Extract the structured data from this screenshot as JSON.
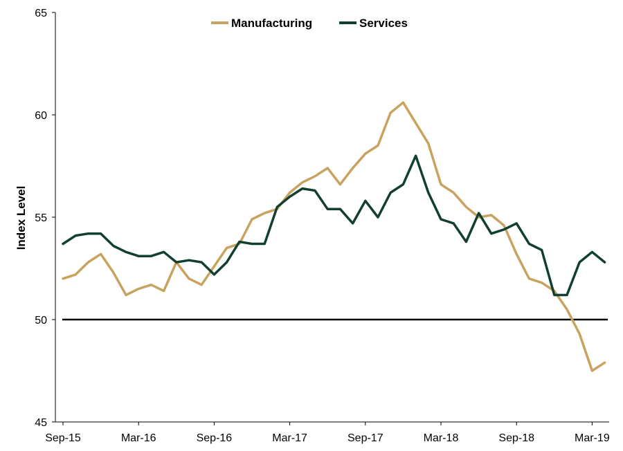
{
  "chart_data": {
    "type": "line",
    "title": "",
    "xlabel": "",
    "ylabel": "Index Level",
    "ylim": [
      45,
      65
    ],
    "yticks": [
      45,
      50,
      55,
      60,
      65
    ],
    "x_tick_labels": [
      "Sep-15",
      "Mar-16",
      "Sep-16",
      "Mar-17",
      "Sep-17",
      "Mar-18",
      "Sep-18",
      "Mar-19"
    ],
    "x": [
      "Sep-15",
      "Oct-15",
      "Nov-15",
      "Dec-15",
      "Jan-16",
      "Feb-16",
      "Mar-16",
      "Apr-16",
      "May-16",
      "Jun-16",
      "Jul-16",
      "Aug-16",
      "Sep-16",
      "Oct-16",
      "Nov-16",
      "Dec-16",
      "Jan-17",
      "Feb-17",
      "Mar-17",
      "Apr-17",
      "May-17",
      "Jun-17",
      "Jul-17",
      "Aug-17",
      "Sep-17",
      "Oct-17",
      "Nov-17",
      "Dec-17",
      "Jan-18",
      "Feb-18",
      "Mar-18",
      "Apr-18",
      "May-18",
      "Jun-18",
      "Jul-18",
      "Aug-18",
      "Sep-18",
      "Oct-18",
      "Nov-18",
      "Dec-18",
      "Jan-19",
      "Feb-19",
      "Mar-19",
      "Apr-19"
    ],
    "reference_line": 50,
    "legend_position": "top-center",
    "grid": false,
    "series": [
      {
        "name": "Manufacturing",
        "color": "#c8a35f",
        "values": [
          52.0,
          52.2,
          52.8,
          53.2,
          52.3,
          51.2,
          51.5,
          51.7,
          51.4,
          52.8,
          52.0,
          51.7,
          52.6,
          53.5,
          53.7,
          54.9,
          55.2,
          55.4,
          56.2,
          56.7,
          57.0,
          57.4,
          56.6,
          57.4,
          58.1,
          58.5,
          60.1,
          60.6,
          59.6,
          58.6,
          56.6,
          56.2,
          55.5,
          55.0,
          55.1,
          54.6,
          53.2,
          52.0,
          51.8,
          51.4,
          50.5,
          49.3,
          47.5,
          47.9
        ]
      },
      {
        "name": "Services",
        "color": "#123f2f",
        "values": [
          53.7,
          54.1,
          54.2,
          54.2,
          53.6,
          53.3,
          53.1,
          53.1,
          53.3,
          52.8,
          52.9,
          52.8,
          52.2,
          52.8,
          53.8,
          53.7,
          53.7,
          55.5,
          56.0,
          56.4,
          56.3,
          55.4,
          55.4,
          54.7,
          55.8,
          55.0,
          56.2,
          56.6,
          58.0,
          56.2,
          54.9,
          54.7,
          53.8,
          55.2,
          54.2,
          54.4,
          54.7,
          53.7,
          53.4,
          51.2,
          51.2,
          52.8,
          53.3,
          52.8
        ]
      }
    ]
  }
}
